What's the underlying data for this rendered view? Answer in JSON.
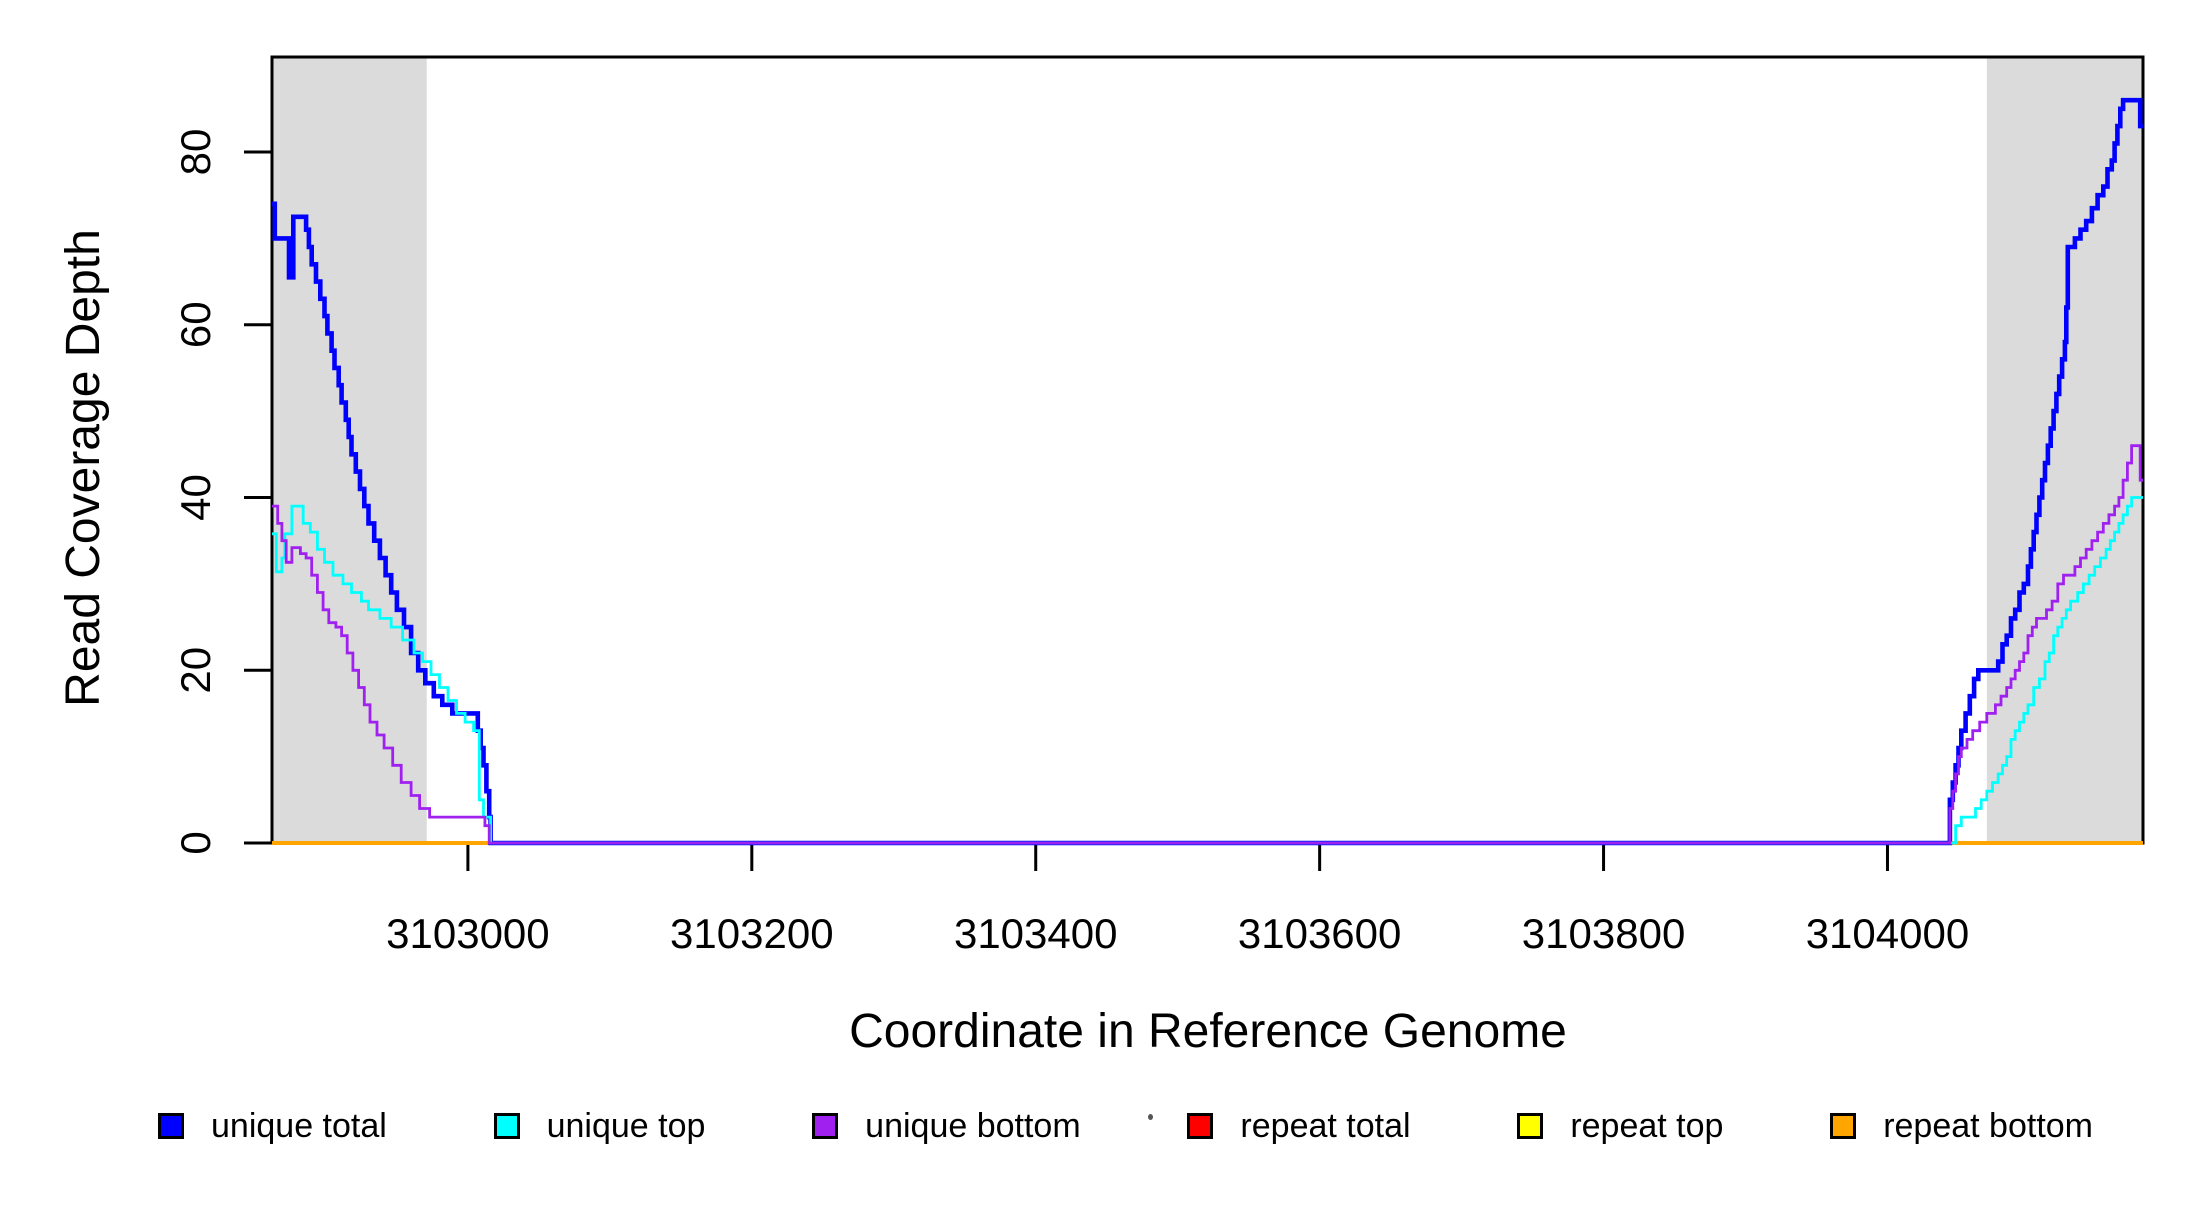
{
  "chart_data": {
    "type": "line",
    "subtype": "step-coverage",
    "title": "",
    "xlabel": "Coordinate in Reference Genome",
    "ylabel": "Read Coverage Depth",
    "xlim": [
      3102862,
      3104180
    ],
    "ylim": [
      0,
      91
    ],
    "grid": false,
    "legend_position": "bottom",
    "x_ticks": [
      3103000,
      3103200,
      3103400,
      3103600,
      3103800,
      3104000
    ],
    "x_tick_labels": [
      "3103000",
      "3103200",
      "3103400",
      "3103600",
      "3103800",
      "3104000"
    ],
    "y_ticks": [
      0,
      20,
      40,
      60,
      80
    ],
    "y_tick_labels": [
      "0",
      "20",
      "40",
      "60",
      "80"
    ],
    "highlight_regions": [
      {
        "x0": 3102862,
        "x1": 3102971,
        "color": "#DBDBDB"
      },
      {
        "x0": 3104070,
        "x1": 3104180,
        "color": "#DBDBDB"
      }
    ],
    "series": [
      {
        "name": "repeat total",
        "color": "#FF0000",
        "width": 3.4,
        "points": [
          [
            3102862,
            0
          ]
        ]
      },
      {
        "name": "repeat top",
        "color": "#FFFF00",
        "width": 3.4,
        "points": [
          [
            3102862,
            0
          ]
        ]
      },
      {
        "name": "repeat bottom",
        "color": "#FFA500",
        "width": 4,
        "points": [
          [
            3102862,
            0
          ]
        ]
      },
      {
        "name": "unique total",
        "color": "#0000FF",
        "width": 4.6,
        "points": [
          [
            3102862,
            74
          ],
          [
            3102864,
            70
          ],
          [
            3102874,
            65.5
          ],
          [
            3102877,
            72.5
          ],
          [
            3102886,
            71
          ],
          [
            3102888,
            69
          ],
          [
            3102890,
            67
          ],
          [
            3102893,
            65
          ],
          [
            3102896,
            63
          ],
          [
            3102899,
            61
          ],
          [
            3102901,
            59
          ],
          [
            3102904,
            57
          ],
          [
            3102906,
            55
          ],
          [
            3102909,
            53
          ],
          [
            3102911,
            51
          ],
          [
            3102914,
            49
          ],
          [
            3102916,
            47
          ],
          [
            3102918,
            45
          ],
          [
            3102921,
            43
          ],
          [
            3102924,
            41
          ],
          [
            3102927,
            39
          ],
          [
            3102930,
            37
          ],
          [
            3102934,
            35
          ],
          [
            3102938,
            33
          ],
          [
            3102942,
            31
          ],
          [
            3102946,
            29
          ],
          [
            3102950,
            27
          ],
          [
            3102955,
            25
          ],
          [
            3102960,
            22
          ],
          [
            3102965,
            20
          ],
          [
            3102970,
            18.5
          ],
          [
            3102976,
            17
          ],
          [
            3102982,
            16
          ],
          [
            3102989,
            15
          ],
          [
            3103007,
            13
          ],
          [
            3103009,
            11
          ],
          [
            3103011,
            9
          ],
          [
            3103013,
            6
          ],
          [
            3103015,
            3
          ],
          [
            3103016,
            0
          ],
          [
            3104044,
            5
          ],
          [
            3104046,
            7
          ],
          [
            3104048,
            9
          ],
          [
            3104050,
            11
          ],
          [
            3104052,
            13
          ],
          [
            3104055,
            15
          ],
          [
            3104058,
            17
          ],
          [
            3104061,
            19
          ],
          [
            3104064,
            20
          ],
          [
            3104078,
            21
          ],
          [
            3104081,
            23
          ],
          [
            3104084,
            24
          ],
          [
            3104087,
            26
          ],
          [
            3104090,
            27
          ],
          [
            3104093,
            29
          ],
          [
            3104096,
            30
          ],
          [
            3104099,
            32
          ],
          [
            3104101,
            34
          ],
          [
            3104103,
            36
          ],
          [
            3104105,
            38
          ],
          [
            3104107,
            40
          ],
          [
            3104109,
            42
          ],
          [
            3104111,
            44
          ],
          [
            3104113,
            46
          ],
          [
            3104115,
            48
          ],
          [
            3104117,
            50
          ],
          [
            3104119,
            52
          ],
          [
            3104121,
            54
          ],
          [
            3104123,
            56
          ],
          [
            3104125,
            58
          ],
          [
            3104126,
            62
          ],
          [
            3104127,
            69
          ],
          [
            3104132,
            70
          ],
          [
            3104136,
            71
          ],
          [
            3104140,
            72
          ],
          [
            3104144,
            73.5
          ],
          [
            3104148,
            75
          ],
          [
            3104152,
            76
          ],
          [
            3104155,
            78
          ],
          [
            3104158,
            79
          ],
          [
            3104160,
            81
          ],
          [
            3104162,
            83
          ],
          [
            3104164,
            85
          ],
          [
            3104166,
            86
          ],
          [
            3104178,
            83
          ]
        ]
      },
      {
        "name": "unique top",
        "color": "#00FFFF",
        "width": 2.8,
        "points": [
          [
            3102862,
            35.8
          ],
          [
            3102865,
            31.4
          ],
          [
            3102869,
            33
          ],
          [
            3102871,
            35.8
          ],
          [
            3102876,
            39
          ],
          [
            3102884,
            37
          ],
          [
            3102889,
            36
          ],
          [
            3102894,
            34
          ],
          [
            3102899,
            32.5
          ],
          [
            3102905,
            31
          ],
          [
            3102912,
            30
          ],
          [
            3102918,
            29
          ],
          [
            3102925,
            28
          ],
          [
            3102930,
            27
          ],
          [
            3102938,
            26
          ],
          [
            3102946,
            25
          ],
          [
            3102954,
            23.5
          ],
          [
            3102962,
            22
          ],
          [
            3102968,
            21
          ],
          [
            3102974,
            19.5
          ],
          [
            3102980,
            18
          ],
          [
            3102986,
            16.5
          ],
          [
            3102992,
            15
          ],
          [
            3102998,
            14
          ],
          [
            3103004,
            13
          ],
          [
            3103008,
            5
          ],
          [
            3103011,
            3
          ],
          [
            3103016,
            0
          ],
          [
            3104048,
            2
          ],
          [
            3104052,
            3
          ],
          [
            3104062,
            4
          ],
          [
            3104066,
            5
          ],
          [
            3104070,
            6
          ],
          [
            3104074,
            7
          ],
          [
            3104078,
            8
          ],
          [
            3104081,
            9
          ],
          [
            3104084,
            10
          ],
          [
            3104087,
            12
          ],
          [
            3104090,
            13
          ],
          [
            3104093,
            14
          ],
          [
            3104096,
            15
          ],
          [
            3104099,
            16
          ],
          [
            3104103,
            18
          ],
          [
            3104107,
            19
          ],
          [
            3104111,
            21
          ],
          [
            3104114,
            22
          ],
          [
            3104117,
            24
          ],
          [
            3104120,
            25
          ],
          [
            3104123,
            26
          ],
          [
            3104126,
            27
          ],
          [
            3104129,
            28
          ],
          [
            3104134,
            29
          ],
          [
            3104138,
            30
          ],
          [
            3104142,
            31
          ],
          [
            3104146,
            32
          ],
          [
            3104150,
            33
          ],
          [
            3104154,
            34
          ],
          [
            3104157,
            35
          ],
          [
            3104160,
            36
          ],
          [
            3104163,
            37
          ],
          [
            3104166,
            38
          ],
          [
            3104169,
            39
          ],
          [
            3104172,
            40
          ]
        ]
      },
      {
        "name": "unique bottom",
        "color": "#A020F0",
        "width": 2.8,
        "points": [
          [
            3102862,
            39
          ],
          [
            3102866,
            37
          ],
          [
            3102869,
            35
          ],
          [
            3102872,
            32.5
          ],
          [
            3102876,
            34.2
          ],
          [
            3102882,
            33.5
          ],
          [
            3102886,
            33
          ],
          [
            3102890,
            31
          ],
          [
            3102894,
            29
          ],
          [
            3102898,
            27
          ],
          [
            3102902,
            25.5
          ],
          [
            3102907,
            25
          ],
          [
            3102911,
            24
          ],
          [
            3102915,
            22
          ],
          [
            3102919,
            20
          ],
          [
            3102923,
            18
          ],
          [
            3102927,
            16
          ],
          [
            3102931,
            14
          ],
          [
            3102936,
            12.5
          ],
          [
            3102941,
            11
          ],
          [
            3102947,
            9
          ],
          [
            3102953,
            7
          ],
          [
            3102960,
            5.5
          ],
          [
            3102966,
            4
          ],
          [
            3102973,
            3
          ],
          [
            3103012,
            2
          ],
          [
            3103015,
            0
          ],
          [
            3104044,
            4
          ],
          [
            3104046,
            6
          ],
          [
            3104048,
            8
          ],
          [
            3104050,
            10
          ],
          [
            3104052,
            11
          ],
          [
            3104056,
            12
          ],
          [
            3104060,
            13
          ],
          [
            3104065,
            14
          ],
          [
            3104070,
            15
          ],
          [
            3104076,
            16
          ],
          [
            3104080,
            17
          ],
          [
            3104084,
            18
          ],
          [
            3104087,
            19
          ],
          [
            3104090,
            20
          ],
          [
            3104093,
            21
          ],
          [
            3104096,
            22
          ],
          [
            3104099,
            24
          ],
          [
            3104102,
            25
          ],
          [
            3104105,
            26
          ],
          [
            3104112,
            27
          ],
          [
            3104116,
            28
          ],
          [
            3104120,
            30
          ],
          [
            3104124,
            31
          ],
          [
            3104132,
            32
          ],
          [
            3104136,
            33
          ],
          [
            3104140,
            34
          ],
          [
            3104144,
            35
          ],
          [
            3104148,
            36
          ],
          [
            3104152,
            37
          ],
          [
            3104156,
            38
          ],
          [
            3104160,
            39
          ],
          [
            3104163,
            40
          ],
          [
            3104166,
            42
          ],
          [
            3104169,
            44
          ],
          [
            3104172,
            46
          ],
          [
            3104178,
            42
          ]
        ]
      }
    ]
  },
  "legend": {
    "items": [
      {
        "label": "unique total",
        "color": "#0000FF"
      },
      {
        "label": "unique top",
        "color": "#00FFFF"
      },
      {
        "label": "unique bottom",
        "color": "#A020F0"
      },
      {
        "label": "repeat total",
        "color": "#FF0000"
      },
      {
        "label": "repeat top",
        "color": "#FFFF00"
      },
      {
        "label": "repeat bottom",
        "color": "#FFA500"
      }
    ]
  },
  "colors": {
    "background": "#FFFFFF",
    "band": "#DBDBDB",
    "axis": "#000000"
  }
}
